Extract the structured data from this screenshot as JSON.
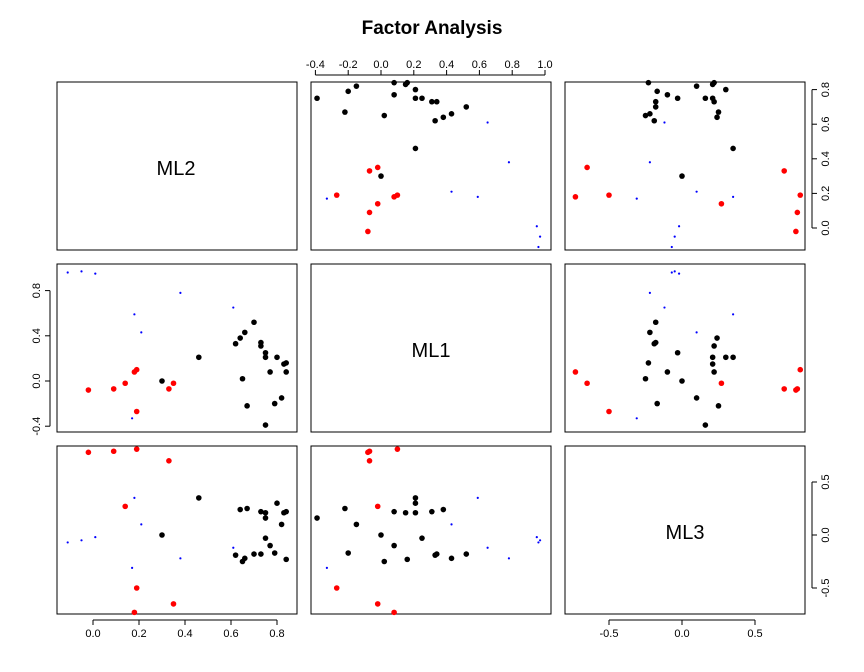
{
  "chart_data": {
    "type": "scatter",
    "title": "Factor Analysis",
    "variables": [
      "ML2",
      "ML1",
      "ML3"
    ],
    "axis_ticks": {
      "ML2": [
        "-0.4",
        "-0.2",
        "0.0",
        "0.2",
        "0.4",
        "0.6",
        "0.8",
        "1.0"
      ],
      "ML1": [
        "-0.4",
        "0.0",
        "0.4",
        "0.8"
      ],
      "ML3": [
        "-0.5",
        "0.0",
        "0.5"
      ],
      "ML2_bottom": [
        "0.0",
        "0.2",
        "0.4",
        "0.6",
        "0.8"
      ],
      "ML1_right": [
        "0.0",
        "0.2",
        "0.4",
        "0.6",
        "0.8"
      ]
    },
    "colors": {
      "black": "#000000",
      "red": "#ff0000",
      "blue": "#0000ff"
    },
    "groups": [
      {
        "color": "black",
        "marker": "filled-circle",
        "points": [
          {
            "ML1": 0.75,
            "ML2": 0.21,
            "ML3": 0.21
          },
          {
            "ML1": 0.8,
            "ML2": 0.21,
            "ML3": 0.3
          },
          {
            "ML1": 0.83,
            "ML2": 0.15,
            "ML3": 0.21
          },
          {
            "ML1": 0.84,
            "ML2": 0.08,
            "ML3": 0.22
          },
          {
            "ML1": 0.73,
            "ML2": 0.31,
            "ML3": 0.22
          },
          {
            "ML1": 0.64,
            "ML2": 0.38,
            "ML3": 0.24
          },
          {
            "ML1": 0.62,
            "ML2": 0.33,
            "ML3": -0.19
          },
          {
            "ML1": 0.73,
            "ML2": 0.34,
            "ML3": -0.18
          },
          {
            "ML1": 0.7,
            "ML2": 0.52,
            "ML3": -0.18
          },
          {
            "ML1": 0.66,
            "ML2": 0.43,
            "ML3": -0.22
          },
          {
            "ML1": 0.75,
            "ML2": 0.25,
            "ML3": -0.03
          },
          {
            "ML1": 0.77,
            "ML2": 0.08,
            "ML3": -0.1
          },
          {
            "ML1": 0.84,
            "ML2": 0.16,
            "ML3": -0.23
          },
          {
            "ML1": 0.65,
            "ML2": 0.02,
            "ML3": -0.25
          },
          {
            "ML1": 0.67,
            "ML2": -0.22,
            "ML3": 0.25
          },
          {
            "ML1": 0.82,
            "ML2": -0.15,
            "ML3": 0.1
          },
          {
            "ML1": 0.79,
            "ML2": -0.2,
            "ML3": -0.17
          },
          {
            "ML1": 0.75,
            "ML2": -0.39,
            "ML3": 0.16
          },
          {
            "ML1": 0.46,
            "ML2": 0.21,
            "ML3": 0.35
          },
          {
            "ML1": 0.3,
            "ML2": 0.0,
            "ML3": 0.0
          }
        ]
      },
      {
        "color": "red",
        "marker": "filled-circle",
        "points": [
          {
            "ML1": -0.02,
            "ML2": -0.08,
            "ML3": 0.78
          },
          {
            "ML1": 0.09,
            "ML2": -0.07,
            "ML3": 0.79
          },
          {
            "ML1": 0.19,
            "ML2": 0.1,
            "ML3": 0.81
          },
          {
            "ML1": 0.33,
            "ML2": -0.07,
            "ML3": 0.7
          },
          {
            "ML1": 0.14,
            "ML2": -0.02,
            "ML3": 0.27
          },
          {
            "ML1": 0.18,
            "ML2": 0.08,
            "ML3": -0.73
          },
          {
            "ML1": 0.35,
            "ML2": -0.02,
            "ML3": -0.65
          },
          {
            "ML1": 0.19,
            "ML2": -0.27,
            "ML3": -0.5
          }
        ]
      },
      {
        "color": "blue",
        "marker": "small-cross",
        "points": [
          {
            "ML1": -0.11,
            "ML2": 0.96,
            "ML3": -0.07
          },
          {
            "ML1": -0.05,
            "ML2": 0.97,
            "ML3": -0.05
          },
          {
            "ML1": 0.01,
            "ML2": 0.95,
            "ML3": -0.02
          },
          {
            "ML1": 0.38,
            "ML2": 0.78,
            "ML3": -0.22
          },
          {
            "ML1": 0.61,
            "ML2": 0.65,
            "ML3": -0.12
          },
          {
            "ML1": 0.18,
            "ML2": 0.59,
            "ML3": 0.35
          },
          {
            "ML1": 0.21,
            "ML2": 0.43,
            "ML3": 0.1
          },
          {
            "ML1": 0.17,
            "ML2": -0.33,
            "ML3": -0.31
          }
        ]
      }
    ]
  }
}
